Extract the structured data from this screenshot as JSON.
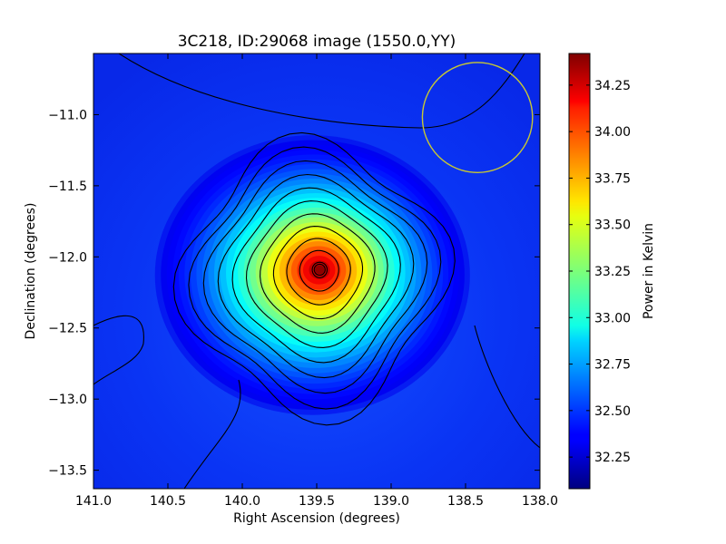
{
  "chart_data": {
    "type": "heatmap",
    "title": "3C218, ID:29068 image (1550.0,YY)",
    "xlabel": "Right Ascension (degrees)",
    "ylabel": "Declination (degrees)",
    "xlim": [
      141.0,
      138.0
    ],
    "ylim": [
      -13.63,
      -10.57
    ],
    "x_ticks": [
      141.0,
      140.5,
      140.0,
      139.5,
      139.0,
      138.5,
      138.0
    ],
    "x_tick_labels": [
      "141.0",
      "140.5",
      "140.0",
      "139.5",
      "139.0",
      "138.5",
      "138.0"
    ],
    "y_ticks": [
      -11.0,
      -11.5,
      -12.0,
      -12.5,
      -13.0,
      -13.5
    ],
    "y_tick_labels": [
      "−11.0",
      "−11.5",
      "−12.0",
      "−12.5",
      "−13.0",
      "−13.5"
    ],
    "colorbar": {
      "label": "Power in Kelvin",
      "colormap": "jet",
      "min": 32.08,
      "max": 34.42,
      "ticks": [
        32.25,
        32.5,
        32.75,
        33.0,
        33.25,
        33.5,
        33.75,
        34.0,
        34.25
      ],
      "tick_labels": [
        "32.25",
        "32.50",
        "32.75",
        "33.00",
        "33.25",
        "33.50",
        "33.75",
        "34.00",
        "34.25"
      ]
    },
    "peak": {
      "ra": 139.48,
      "dec": -12.09,
      "value": 34.4
    },
    "background_level": 32.33,
    "contours": "black",
    "beam_circle": {
      "ra": 138.42,
      "dec": -11.02,
      "radius_deg": 0.37,
      "color": "#c8c832"
    },
    "grid": false
  }
}
